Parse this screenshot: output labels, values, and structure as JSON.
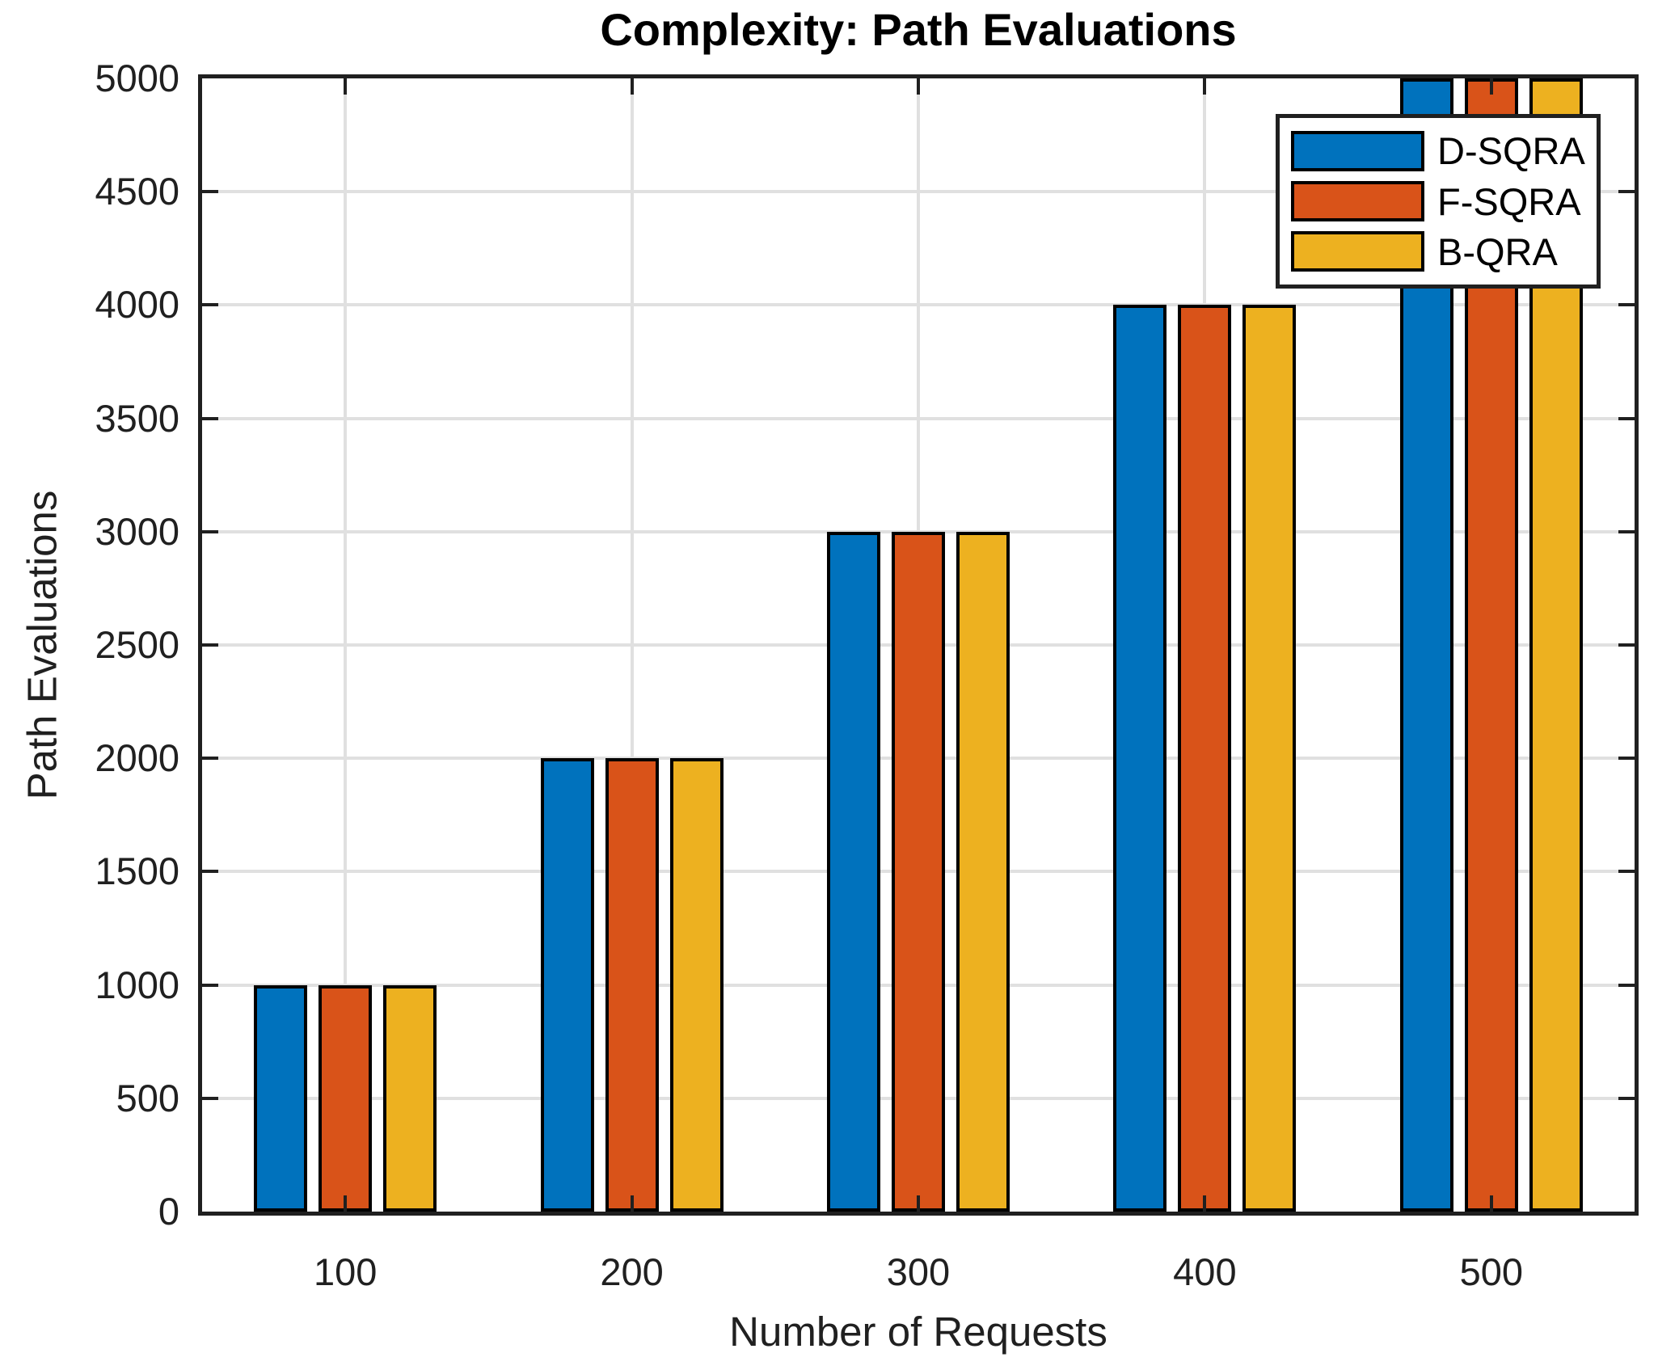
{
  "chart_data": {
    "type": "bar",
    "title": "Complexity: Path Evaluations",
    "xlabel": "Number of Requests",
    "ylabel": "Path Evaluations",
    "categories": [
      "100",
      "200",
      "300",
      "400",
      "500"
    ],
    "series": [
      {
        "name": "D-SQRA",
        "color": "#0072BD",
        "values": [
          1000,
          2000,
          3000,
          4000,
          5000
        ]
      },
      {
        "name": "F-SQRA",
        "color": "#D95319",
        "values": [
          1000,
          2000,
          3000,
          4000,
          5000
        ]
      },
      {
        "name": "B-QRA",
        "color": "#EDB120",
        "values": [
          1000,
          2000,
          3000,
          4000,
          5000
        ]
      }
    ],
    "ylim": [
      0,
      5000
    ],
    "yticks": [
      0,
      500,
      1000,
      1500,
      2000,
      2500,
      3000,
      3500,
      4000,
      4500,
      5000
    ],
    "grid": "on",
    "legend_position": "top-right",
    "styles": {
      "bar_edge_color": "#000000",
      "grid_color": "#e0e0e0",
      "axis_color": "#202020",
      "background": "#ffffff"
    }
  }
}
